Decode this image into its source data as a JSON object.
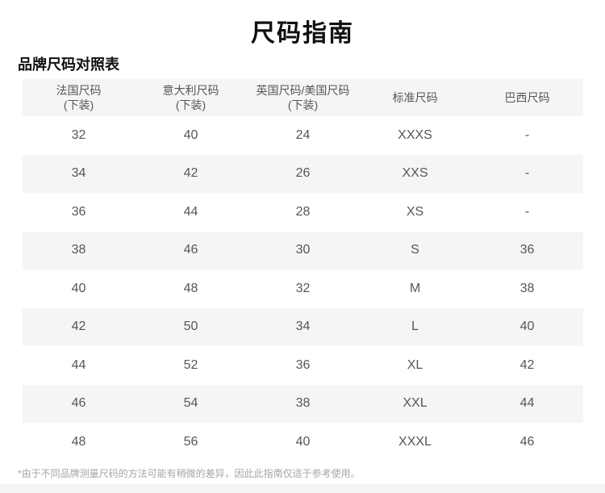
{
  "page": {
    "title": "尺码指南",
    "section_title": "品牌尺码对照表",
    "footnote": "*由于不同品牌测量尺码的方法可能有稍微的差异，因此此指南仅适于参考使用。"
  },
  "table": {
    "headers": [
      {
        "line1": "法国尺码",
        "line2": "(下装)"
      },
      {
        "line1": "意大利尺码",
        "line2": "(下装)"
      },
      {
        "line1": "英国尺码/美国尺码",
        "line2": "(下装)"
      },
      {
        "line1": "标准尺码",
        "line2": ""
      },
      {
        "line1": "巴西尺码",
        "line2": ""
      }
    ],
    "rows": [
      [
        "32",
        "40",
        "24",
        "XXXS",
        "-"
      ],
      [
        "34",
        "42",
        "26",
        "XXS",
        "-"
      ],
      [
        "36",
        "44",
        "28",
        "XS",
        "-"
      ],
      [
        "38",
        "46",
        "30",
        "S",
        "36"
      ],
      [
        "40",
        "48",
        "32",
        "M",
        "38"
      ],
      [
        "42",
        "50",
        "34",
        "L",
        "40"
      ],
      [
        "44",
        "52",
        "36",
        "XL",
        "42"
      ],
      [
        "46",
        "54",
        "38",
        "XXL",
        "44"
      ],
      [
        "48",
        "56",
        "40",
        "XXXL",
        "46"
      ]
    ]
  },
  "colors": {
    "stripe_bg": "#f5f5f5",
    "table_text": "#55565a",
    "title_text": "#111111",
    "footnote_text": "#a5a5a5",
    "bottom_strip_bg": "#f4f4f4"
  }
}
